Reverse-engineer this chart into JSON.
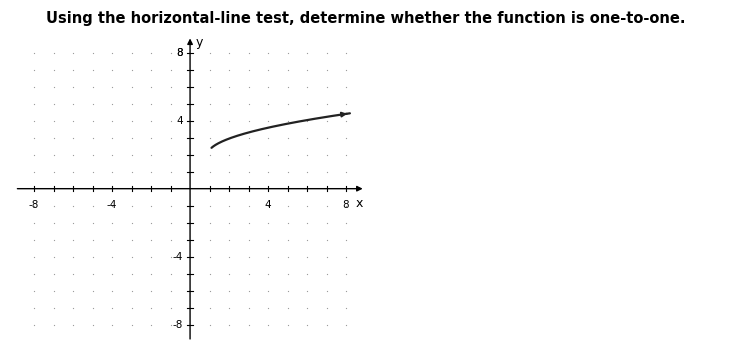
{
  "title": "Using the horizontal-line test, determine whether the function is one-to-one.",
  "title_fontsize": 10.5,
  "title_fontweight": "bold",
  "xlim": [
    -9,
    9
  ],
  "ylim": [
    -9,
    9
  ],
  "xticks": [
    -8,
    -4,
    4,
    8
  ],
  "yticks": [
    -8,
    -4,
    4,
    8
  ],
  "xlabel": "x",
  "ylabel": "y",
  "axis_label_fontsize": 9,
  "curve_color": "#222222",
  "curve_linewidth": 1.6,
  "grid_dot_color": "#999999",
  "background_color": "#f0ece6",
  "curve_x_start": 1.1,
  "curve_x_end": 8.2,
  "curve_a": 0.9,
  "curve_b": 0.9,
  "curve_c": 2.0,
  "tick_fontsize": 7.5
}
